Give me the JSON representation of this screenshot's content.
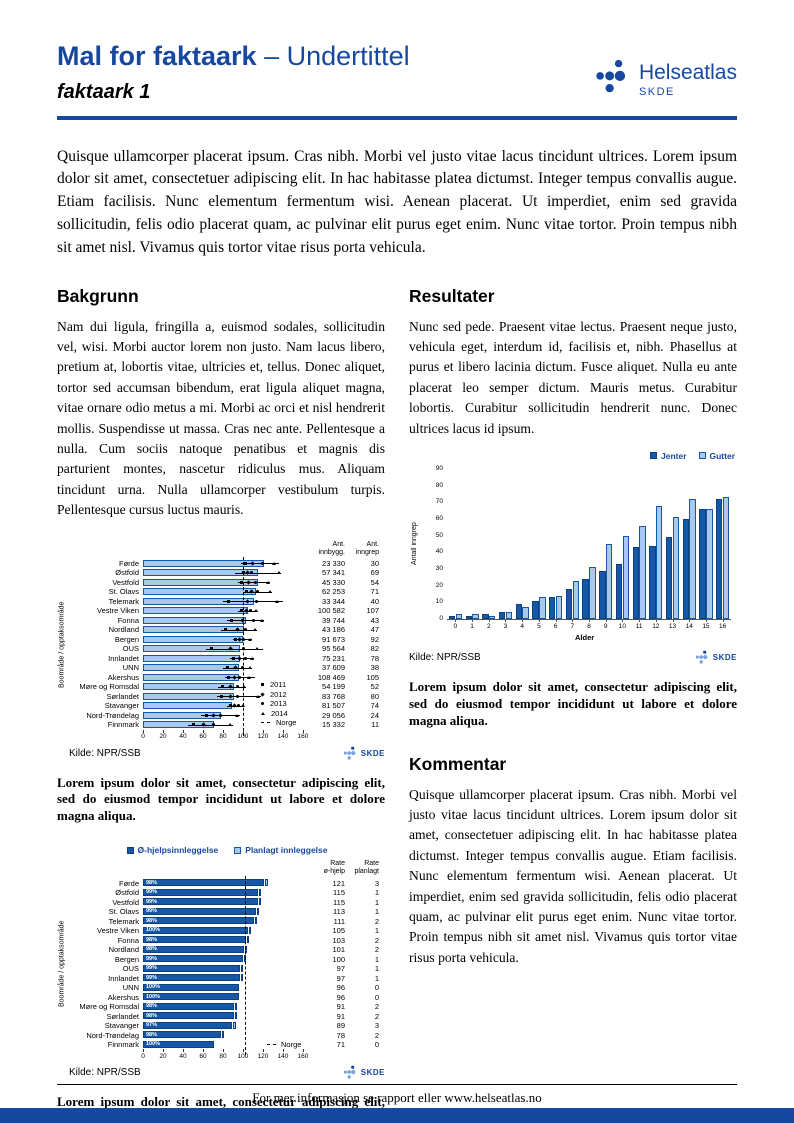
{
  "colors": {
    "brand": "#17479e",
    "bar_dark": "#1558a8",
    "bar_light": "#a9c9ea"
  },
  "header": {
    "title": "Mal for faktaark",
    "subtitle_suffix": "– Undertittel",
    "subtitle": "faktaark 1",
    "brand": {
      "name": "Helseatlas",
      "org": "SKDE"
    }
  },
  "chart_logo_text": "SKDE",
  "intro": "Quisque ullamcorper placerat ipsum. Cras nibh. Morbi vel justo vitae lacus tincidunt ultrices. Lorem ipsum dolor sit amet, consectetuer adipiscing elit. In hac habitasse platea dictumst. Integer tempus convallis augue. Etiam facilisis. Nunc elementum fermentum wisi. Aenean placerat. Ut imperdiet, enim sed gravida sollicitudin, felis odio placerat quam, ac pulvinar elit purus eget enim. Nunc vitae tortor. Proin tempus nibh sit amet nisl. Vivamus quis tortor vitae risus porta vehicula.",
  "sections": {
    "bakgrunn": {
      "heading": "Bakgrunn",
      "text": "Nam dui ligula, fringilla a, euismod sodales, sollicitudin vel, wisi. Morbi auctor lorem non justo. Nam lacus libero, pretium at, lobortis vitae, ultricies et, tellus. Donec aliquet, tortor sed accumsan bibendum, erat ligula aliquet magna, vitae ornare odio metus a mi. Morbi ac orci et nisl hendrerit mollis. Suspendisse ut massa. Cras nec ante. Pellentesque a nulla. Cum sociis natoque penatibus et magnis dis parturient montes, nascetur ridiculus mus. Aliquam tincidunt urna. Nulla ullamcorper vestibulum turpis. Pellentesque cursus luctus mauris."
    },
    "resultater": {
      "heading": "Resultater",
      "text": "Nunc sed pede. Praesent vitae lectus. Praesent neque justo, vehicula eget, interdum id, facilisis et, nibh. Phasellus at purus et libero lacinia dictum. Fusce aliquet. Nulla eu ante placerat leo semper dictum. Mauris metus. Curabitur lobortis. Curabitur sollicitudin hendrerit nunc. Donec ultrices lacus id ipsum."
    },
    "kommentar": {
      "heading": "Kommentar",
      "text": "Quisque ullamcorper placerat ipsum. Cras nibh. Morbi vel justo vitae lacus tincidunt ultrices. Lorem ipsum dolor sit amet, consectetuer adipiscing elit. In hac habitasse platea dictumst. Integer tempus convallis augue. Etiam facilisis. Nunc elementum fermentum wisi. Aenean placerat. Ut imperdiet, enim sed gravida sollicitudin, felis odio placerat quam, ac pulvinar elit purus eget enim. Nunc vitae tortor. Proin tempus nibh sit amet nisl. Vivamus quis tortor vitae risus porta vehicula."
    }
  },
  "captions": {
    "chart1": "Lorem ipsum dolor sit amet, consectetur adipiscing elit, sed do eiusmod tempor incididunt ut labore et dolore magna aliqua.",
    "chart2": "Lorem ipsum dolor sit amet, consectetur adipiscing elit, sed do eiusmod tempor incididunt ut labore et dolore magna aliqua.",
    "chart3": "Lorem ipsum dolor sit amet, consectetur adipiscing elit, sed do eiusmod tempor incididunt ut labore et dolore magna aliqua."
  },
  "footer": {
    "text": "For mer informasjon se rapport eller www.helseatlas.no"
  },
  "chart_data": [
    {
      "type": "bar",
      "orientation": "horizontal",
      "ylabel": "Boområde / opptaksområde",
      "xlim": [
        0,
        160
      ],
      "xtick_step": 20,
      "norway_line": 100,
      "value_columns": [
        [
          "Ant.",
          "innbygg."
        ],
        [
          "Ant.",
          "inngrep"
        ]
      ],
      "legend": [
        {
          "label": "2011",
          "marker": "square"
        },
        {
          "label": "2012",
          "marker": "diamond"
        },
        {
          "label": "2013",
          "marker": "circle"
        },
        {
          "label": "2014",
          "marker": "triangle"
        },
        {
          "label": "Norge",
          "marker": "dash"
        }
      ],
      "source": "Kilde: NPR/SSB",
      "rows": [
        {
          "label": "Førde",
          "bar": 121,
          "line": [
            98,
            136
          ],
          "markers": [
            102,
            109,
            119,
            130
          ],
          "col1": "23 330",
          "col2": "30"
        },
        {
          "label": "Østfold",
          "bar": 115,
          "line": [
            92,
            138
          ],
          "markers": [
            100,
            104,
            108,
            135
          ],
          "col1": "57 341",
          "col2": "69"
        },
        {
          "label": "Vestfold",
          "bar": 115,
          "line": [
            95,
            127
          ],
          "markers": [
            98,
            105,
            112,
            124
          ],
          "col1": "45 330",
          "col2": "54"
        },
        {
          "label": "St. Olavs",
          "bar": 113,
          "line": [
            100,
            129
          ],
          "markers": [
            103,
            108,
            114,
            126
          ],
          "col1": "62 253",
          "col2": "71"
        },
        {
          "label": "Telemark",
          "bar": 111,
          "line": [
            80,
            140
          ],
          "markers": [
            85,
            104,
            113,
            133
          ],
          "col1": "33 344",
          "col2": "40"
        },
        {
          "label": "Vestre Viken",
          "bar": 105,
          "line": [
            95,
            115
          ],
          "markers": [
            98,
            103,
            107,
            112
          ],
          "col1": "100 582",
          "col2": "107"
        },
        {
          "label": "Fonna",
          "bar": 103,
          "line": [
            84,
            121
          ],
          "markers": [
            88,
            99,
            110,
            118
          ],
          "col1": "39 744",
          "col2": "43"
        },
        {
          "label": "Nordland",
          "bar": 101,
          "line": [
            78,
            114
          ],
          "markers": [
            82,
            94,
            102,
            111
          ],
          "col1": "43 186",
          "col2": "47"
        },
        {
          "label": "Bergen",
          "bar": 100,
          "line": [
            90,
            109
          ],
          "markers": [
            92,
            96,
            100,
            106
          ],
          "col1": "91 673",
          "col2": "92"
        },
        {
          "label": "OUS",
          "bar": 97,
          "line": [
            63,
            120
          ],
          "markers": [
            68,
            87,
            100,
            113
          ],
          "col1": "95 564",
          "col2": "82"
        },
        {
          "label": "Innlandet",
          "bar": 97,
          "line": [
            87,
            111
          ],
          "markers": [
            90,
            96,
            102,
            108
          ],
          "col1": "75 231",
          "col2": "78"
        },
        {
          "label": "UNN",
          "bar": 96,
          "line": [
            80,
            109
          ],
          "markers": [
            84,
            92,
            99,
            106
          ],
          "col1": "37 609",
          "col2": "38"
        },
        {
          "label": "Akershus",
          "bar": 96,
          "line": [
            82,
            112
          ],
          "markers": [
            85,
            91,
            96,
            105
          ],
          "col1": "108 469",
          "col2": "105"
        },
        {
          "label": "Møre og Romsdal",
          "bar": 91,
          "line": [
            75,
            103
          ],
          "markers": [
            79,
            87,
            94,
            100
          ],
          "col1": "54 199",
          "col2": "52"
        },
        {
          "label": "Sørlandet",
          "bar": 91,
          "line": [
            74,
            118
          ],
          "markers": [
            78,
            87,
            94,
            114
          ],
          "col1": "83 768",
          "col2": "80"
        },
        {
          "label": "Stavanger",
          "bar": 89,
          "line": [
            84,
            101
          ],
          "markers": [
            87,
            91,
            95,
            99
          ],
          "col1": "81 507",
          "col2": "74"
        },
        {
          "label": "Nord-Trøndelag",
          "bar": 78,
          "line": [
            58,
            97
          ],
          "markers": [
            63,
            70,
            77,
            93
          ],
          "col1": "29 056",
          "col2": "24"
        },
        {
          "label": "Finnmark",
          "bar": 71,
          "line": [
            45,
            90
          ],
          "markers": [
            50,
            60,
            70,
            86
          ],
          "col1": "15 332",
          "col2": "11"
        }
      ]
    },
    {
      "type": "bar",
      "categories": [
        "0",
        "1",
        "2",
        "3",
        "4",
        "5",
        "6",
        "7",
        "8",
        "9",
        "10",
        "11",
        "12",
        "13",
        "14",
        "15",
        "16"
      ],
      "series": [
        {
          "name": "Jenter",
          "color": "dark",
          "values": [
            2,
            2,
            3,
            4,
            9,
            11,
            13,
            18,
            24,
            29,
            33,
            43,
            44,
            49,
            60,
            66,
            72
          ]
        },
        {
          "name": "Gutter",
          "color": "light",
          "values": [
            3,
            3,
            2,
            4,
            7,
            13,
            14,
            23,
            31,
            45,
            50,
            56,
            68,
            61,
            72,
            66,
            73
          ]
        }
      ],
      "xlabel": "Alder",
      "ylabel": "Antall inngrep",
      "ylim": [
        0,
        90
      ],
      "ytick_step": 10,
      "legend_position": "top-right",
      "source": "Kilde: NPR/SSB"
    },
    {
      "type": "bar",
      "orientation": "horizontal",
      "ylabel": "Boområde / opptaksområde",
      "xlim": [
        0,
        160
      ],
      "xtick_step": 20,
      "norway_line": 102,
      "norway_legend": "Norge",
      "bar_style": "dark",
      "legend_top": [
        {
          "label": "Ø-hjelpsinnleggelse",
          "swatch": "dark"
        },
        {
          "label": "Planlagt innleggelse",
          "swatch": "light"
        }
      ],
      "value_columns": [
        [
          "Rate",
          "ø-hjelp"
        ],
        [
          "Rate",
          "planlagt"
        ]
      ],
      "source": "Kilde: NPR/SSB",
      "rows": [
        {
          "label": "Førde",
          "pct": "98%",
          "bar": 121,
          "bar2": 3,
          "col1": "121",
          "col2": "3"
        },
        {
          "label": "Østfold",
          "pct": "99%",
          "bar": 115,
          "bar2": 1,
          "col1": "115",
          "col2": "1"
        },
        {
          "label": "Vestfold",
          "pct": "99%",
          "bar": 115,
          "bar2": 1,
          "col1": "115",
          "col2": "1"
        },
        {
          "label": "St. Olavs",
          "pct": "99%",
          "bar": 113,
          "bar2": 1,
          "col1": "113",
          "col2": "1"
        },
        {
          "label": "Telemark",
          "pct": "98%",
          "bar": 111,
          "bar2": 2,
          "col1": "111",
          "col2": "2"
        },
        {
          "label": "Vestre Viken",
          "pct": "100%",
          "bar": 105,
          "bar2": 1,
          "col1": "105",
          "col2": "1"
        },
        {
          "label": "Fonna",
          "pct": "98%",
          "bar": 103,
          "bar2": 2,
          "col1": "103",
          "col2": "2"
        },
        {
          "label": "Nordland",
          "pct": "98%",
          "bar": 101,
          "bar2": 2,
          "col1": "101",
          "col2": "2"
        },
        {
          "label": "Bergen",
          "pct": "99%",
          "bar": 100,
          "bar2": 1,
          "col1": "100",
          "col2": "1"
        },
        {
          "label": "OUS",
          "pct": "99%",
          "bar": 97,
          "bar2": 1,
          "col1": "97",
          "col2": "1"
        },
        {
          "label": "Innlandet",
          "pct": "99%",
          "bar": 97,
          "bar2": 1,
          "col1": "97",
          "col2": "1"
        },
        {
          "label": "UNN",
          "pct": "100%",
          "bar": 96,
          "bar2": 0,
          "col1": "96",
          "col2": "0"
        },
        {
          "label": "Akershus",
          "pct": "100%",
          "bar": 96,
          "bar2": 0,
          "col1": "96",
          "col2": "0"
        },
        {
          "label": "Møre og Romsdal",
          "pct": "98%",
          "bar": 91,
          "bar2": 2,
          "col1": "91",
          "col2": "2"
        },
        {
          "label": "Sørlandet",
          "pct": "98%",
          "bar": 91,
          "bar2": 2,
          "col1": "91",
          "col2": "2"
        },
        {
          "label": "Stavanger",
          "pct": "97%",
          "bar": 89,
          "bar2": 3,
          "col1": "89",
          "col2": "3"
        },
        {
          "label": "Nord-Trøndelag",
          "pct": "98%",
          "bar": 78,
          "bar2": 2,
          "col1": "78",
          "col2": "2"
        },
        {
          "label": "Finnmark",
          "pct": "100%",
          "bar": 71,
          "bar2": 0,
          "col1": "71",
          "col2": "0"
        }
      ]
    }
  ]
}
